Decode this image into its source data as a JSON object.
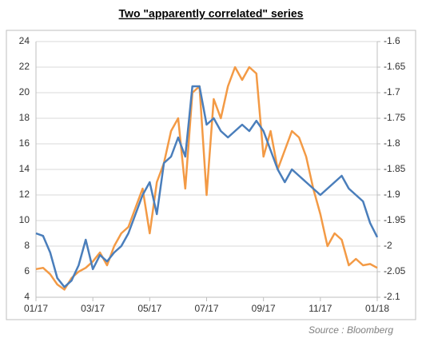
{
  "chart_data": {
    "type": "line",
    "title": "Two \"apparently correlated\" series",
    "source": "Source : Bloomberg",
    "x": [
      0,
      0.25,
      0.5,
      0.75,
      1,
      1.25,
      1.5,
      1.75,
      2,
      2.25,
      2.5,
      2.75,
      3,
      3.25,
      3.5,
      3.75,
      4,
      4.25,
      4.5,
      4.75,
      5,
      5.25,
      5.5,
      5.75,
      6,
      6.25,
      6.5,
      6.75,
      7,
      7.25,
      7.5,
      7.75,
      8,
      8.25,
      8.5,
      8.75,
      9,
      9.25,
      9.5,
      9.75,
      10,
      10.25,
      10.5,
      10.75,
      11,
      11.25,
      11.5,
      11.75,
      12
    ],
    "xlim": [
      0,
      12
    ],
    "xticks": [
      {
        "value": 0,
        "label": "01/17"
      },
      {
        "value": 2,
        "label": "03/17"
      },
      {
        "value": 4,
        "label": "05/17"
      },
      {
        "value": 6,
        "label": "07/17"
      },
      {
        "value": 8,
        "label": "09/17"
      },
      {
        "value": 10,
        "label": "11/17"
      },
      {
        "value": 12,
        "label": "01/18"
      }
    ],
    "ylim": [
      4,
      24
    ],
    "yticks": [
      4,
      6,
      8,
      10,
      12,
      14,
      16,
      18,
      20,
      22,
      24
    ],
    "y2lim": [
      -2.1,
      -1.6
    ],
    "y2ticks": [
      -2.1,
      -2.05,
      -2,
      -1.95,
      -1.9,
      -1.85,
      -1.8,
      -1.75,
      -1.7,
      -1.65,
      -1.6
    ],
    "grid": true,
    "series": [
      {
        "color": "#4a7ebb",
        "values": [
          9.0,
          8.8,
          7.5,
          5.5,
          4.8,
          5.3,
          6.5,
          8.5,
          6.2,
          7.3,
          6.8,
          7.5,
          8.0,
          9.0,
          10.5,
          12.0,
          13.0,
          10.5,
          14.5,
          15.0,
          16.5,
          15.0,
          20.5,
          20.5,
          17.5,
          18.0,
          17.0,
          16.5,
          17.0,
          17.5,
          17.0,
          17.8,
          17.0,
          15.5,
          14.0,
          13.0,
          14.0,
          13.5,
          13.0,
          12.5,
          12.0,
          12.5,
          13.0,
          13.5,
          12.5,
          12.0,
          11.5,
          9.8,
          8.7
        ]
      },
      {
        "color": "#f39a45",
        "axis": "y2",
        "values": [
          -2.045,
          -2.0425,
          -2.055,
          -2.075,
          -2.085,
          -2.0625,
          -2.05,
          -2.0425,
          -2.03,
          -2.0125,
          -2.0375,
          -2.0,
          -1.975,
          -1.9625,
          -1.925,
          -1.8875,
          -1.975,
          -1.875,
          -1.8375,
          -1.775,
          -1.75,
          -1.8875,
          -1.7,
          -1.6875,
          -1.9,
          -1.7125,
          -1.75,
          -1.6875,
          -1.65,
          -1.675,
          -1.65,
          -1.6625,
          -1.825,
          -1.775,
          -1.85,
          -1.8125,
          -1.775,
          -1.7875,
          -1.825,
          -1.8875,
          -1.9375,
          -2.0,
          -1.975,
          -1.9875,
          -2.0375,
          -2.025,
          -2.0375,
          -2.035,
          -2.0425
        ]
      }
    ]
  }
}
